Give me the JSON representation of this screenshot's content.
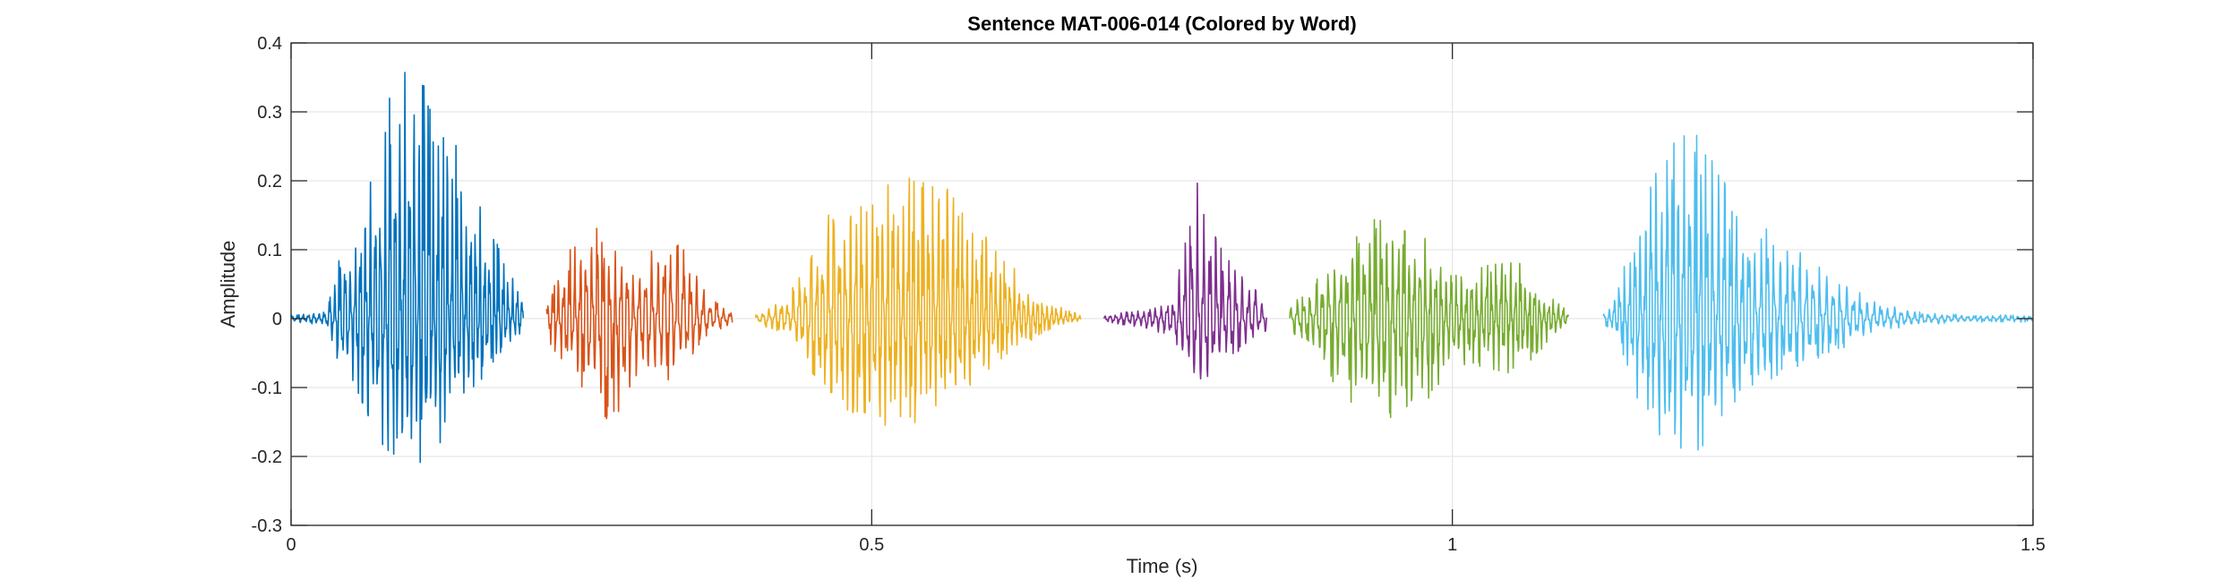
{
  "chart_data": {
    "type": "line",
    "title": "Sentence MAT-006-014 (Colored by Word)",
    "xlabel": "Time (s)",
    "ylabel": "Amplitude",
    "xlim": [
      0,
      1.5
    ],
    "ylim": [
      -0.3,
      0.4
    ],
    "xticks": [
      0,
      0.5,
      1,
      1.5
    ],
    "xtick_labels": [
      "0",
      "0.5",
      "1",
      "1.5"
    ],
    "yticks": [
      -0.3,
      -0.2,
      -0.1,
      0,
      0.1,
      0.2,
      0.3,
      0.4
    ],
    "ytick_labels": [
      "-0.3",
      "-0.2",
      "-0.1",
      "0",
      "0.1",
      "0.2",
      "0.3",
      "0.4"
    ],
    "grid": true,
    "series": [
      {
        "color": "#0072BD",
        "time_range": [
          0,
          0.2
        ],
        "envelope": {
          "t": [
            0.0,
            0.03,
            0.04,
            0.06,
            0.08,
            0.1,
            0.12,
            0.14,
            0.16,
            0.18,
            0.2
          ],
          "max": [
            0.005,
            0.01,
            0.08,
            0.15,
            0.3,
            0.39,
            0.32,
            0.28,
            0.18,
            0.1,
            0.04
          ],
          "min": [
            -0.005,
            -0.01,
            -0.06,
            -0.12,
            -0.2,
            -0.24,
            -0.2,
            -0.16,
            -0.1,
            -0.05,
            -0.02
          ]
        }
      },
      {
        "color": "#D95319",
        "time_range": [
          0.22,
          0.38
        ],
        "envelope": {
          "t": [
            0.22,
            0.24,
            0.26,
            0.28,
            0.3,
            0.32,
            0.34,
            0.36,
            0.38
          ],
          "max": [
            0.03,
            0.1,
            0.14,
            0.1,
            0.08,
            0.13,
            0.1,
            0.03,
            0.01
          ],
          "min": [
            -0.03,
            -0.08,
            -0.14,
            -0.15,
            -0.08,
            -0.1,
            -0.07,
            -0.02,
            -0.01
          ]
        }
      },
      {
        "color": "#EDB120",
        "time_range": [
          0.4,
          0.68
        ],
        "envelope": {
          "t": [
            0.4,
            0.43,
            0.44,
            0.46,
            0.48,
            0.5,
            0.52,
            0.54,
            0.56,
            0.58,
            0.6,
            0.62,
            0.64,
            0.66,
            0.68
          ],
          "max": [
            0.005,
            0.04,
            0.07,
            0.15,
            0.18,
            0.2,
            0.22,
            0.2,
            0.2,
            0.16,
            0.12,
            0.08,
            0.04,
            0.02,
            0.005
          ],
          "min": [
            -0.005,
            -0.03,
            -0.05,
            -0.12,
            -0.14,
            -0.15,
            -0.16,
            -0.15,
            -0.14,
            -0.12,
            -0.08,
            -0.05,
            -0.03,
            -0.01,
            -0.005
          ]
        }
      },
      {
        "color": "#7E2F8E",
        "time_range": [
          0.7,
          0.84
        ],
        "envelope": {
          "t": [
            0.7,
            0.72,
            0.74,
            0.76,
            0.77,
            0.78,
            0.79,
            0.8,
            0.82,
            0.84
          ],
          "max": [
            0.005,
            0.01,
            0.015,
            0.03,
            0.12,
            0.2,
            0.16,
            0.12,
            0.06,
            0.03
          ],
          "min": [
            -0.005,
            -0.01,
            -0.015,
            -0.03,
            -0.08,
            -0.13,
            -0.12,
            -0.08,
            -0.04,
            -0.02
          ]
        }
      },
      {
        "color": "#77AC30",
        "time_range": [
          0.86,
          1.1
        ],
        "envelope": {
          "t": [
            0.86,
            0.88,
            0.9,
            0.92,
            0.94,
            0.96,
            0.98,
            1.0,
            1.02,
            1.04,
            1.06,
            1.08,
            1.1
          ],
          "max": [
            0.02,
            0.05,
            0.1,
            0.14,
            0.15,
            0.14,
            0.12,
            0.06,
            0.08,
            0.09,
            0.09,
            0.04,
            0.01
          ],
          "min": [
            -0.02,
            -0.04,
            -0.1,
            -0.14,
            -0.16,
            -0.14,
            -0.12,
            -0.08,
            -0.07,
            -0.08,
            -0.08,
            -0.04,
            -0.01
          ]
        }
      },
      {
        "color": "#4DBEEE",
        "time_range": [
          1.13,
          1.5
        ],
        "envelope": {
          "t": [
            1.13,
            1.14,
            1.16,
            1.18,
            1.2,
            1.22,
            1.24,
            1.26,
            1.28,
            1.3,
            1.33,
            1.36,
            1.4,
            1.45,
            1.5
          ],
          "max": [
            0.01,
            0.03,
            0.15,
            0.26,
            0.29,
            0.25,
            0.18,
            0.15,
            0.12,
            0.1,
            0.06,
            0.03,
            0.01,
            0.005,
            0.005
          ],
          "min": [
            -0.01,
            -0.02,
            -0.12,
            -0.2,
            -0.22,
            -0.18,
            -0.14,
            -0.11,
            -0.09,
            -0.07,
            -0.05,
            -0.02,
            -0.01,
            -0.005,
            -0.005
          ]
        }
      }
    ]
  }
}
